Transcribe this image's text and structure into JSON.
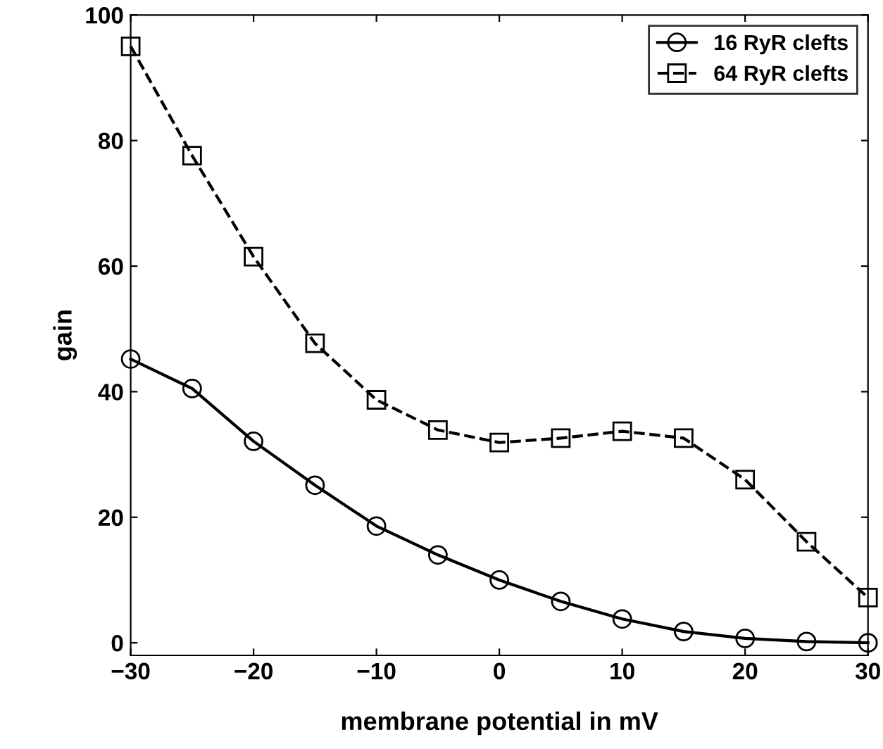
{
  "chart_data": {
    "type": "line",
    "xlabel": "membrane potential in mV",
    "ylabel": "gain",
    "x": [
      -30,
      -25,
      -20,
      -15,
      -10,
      -5,
      0,
      5,
      10,
      15,
      20,
      25,
      30
    ],
    "series": [
      {
        "name": "16 RyR clefts",
        "color": "#000000",
        "values": [
          45.2,
          40.5,
          32.1,
          25.1,
          18.6,
          14.0,
          10.0,
          6.6,
          3.8,
          1.8,
          0.7,
          0.2,
          0
        ],
        "marker": "circle",
        "line_style": "solid"
      },
      {
        "name": "64 RyR clefts",
        "color": "#000000",
        "values": [
          95,
          77.6,
          61.5,
          47.7,
          38.7,
          33.9,
          31.9,
          32.6,
          33.7,
          32.6,
          26.0,
          16.1,
          7.2
        ],
        "marker": "square",
        "line_style": "dashed"
      }
    ],
    "xlim": [
      -30,
      30
    ],
    "ylim": [
      -2,
      100
    ],
    "xticks": [
      {
        "value": -30,
        "label": "−30"
      },
      {
        "value": -20,
        "label": "−20"
      },
      {
        "value": -10,
        "label": "−10"
      },
      0,
      10,
      20,
      30
    ],
    "yticks": [
      0,
      20,
      40,
      60,
      80,
      100
    ],
    "grid": false,
    "legend": "top right"
  }
}
